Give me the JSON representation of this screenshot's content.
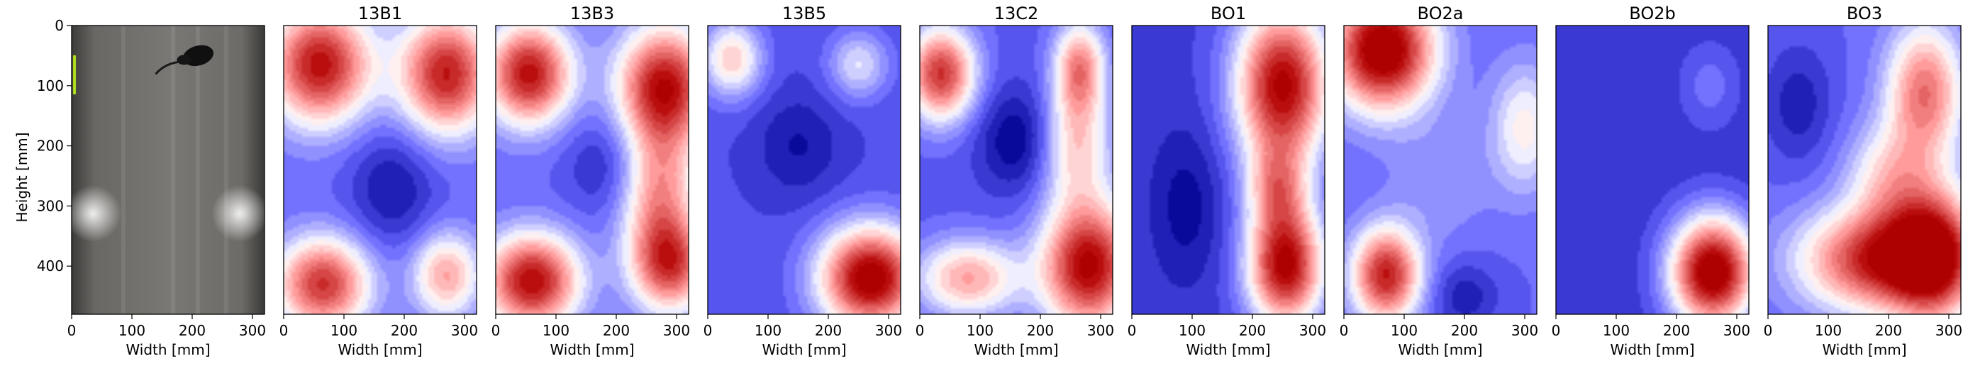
{
  "chart_data": {
    "type": "heatmap",
    "xlabel": "Width [mm]",
    "ylabel": "Height [mm]",
    "xlim": [
      0,
      320
    ],
    "ylim": [
      480,
      0
    ],
    "x_ticks": [
      "0",
      "100",
      "200",
      "300"
    ],
    "x_tick_values": [
      0,
      100,
      200,
      300
    ],
    "y_ticks": [
      "0",
      "100",
      "200",
      "300",
      "400"
    ],
    "y_tick_values": [
      0,
      100,
      200,
      300,
      400
    ],
    "colormap": "bwr",
    "colors": {
      "low": "#00008b",
      "mid": "#ffffff",
      "high": "#b40000"
    },
    "photo_panel": {
      "subject": "mouse in rectangular arena",
      "mouse_position": [
        210,
        50
      ]
    },
    "panels": [
      {
        "title": "13B1",
        "base": -0.55,
        "blobs": [
          {
            "x": 60,
            "y": 65,
            "amp": 1.5,
            "sx": 60,
            "sy": 70
          },
          {
            "x": 270,
            "y": 80,
            "amp": 1.45,
            "sx": 55,
            "sy": 70
          },
          {
            "x": 65,
            "y": 430,
            "amp": 1.35,
            "sx": 55,
            "sy": 55
          },
          {
            "x": 270,
            "y": 415,
            "amp": 0.9,
            "sx": 40,
            "sy": 50
          },
          {
            "x": 180,
            "y": 270,
            "amp": -0.35,
            "sx": 50,
            "sy": 70
          }
        ]
      },
      {
        "title": "13B3",
        "base": -0.55,
        "blobs": [
          {
            "x": 55,
            "y": 80,
            "amp": 1.5,
            "sx": 50,
            "sy": 60
          },
          {
            "x": 280,
            "y": 100,
            "amp": 1.5,
            "sx": 55,
            "sy": 70
          },
          {
            "x": 270,
            "y": 280,
            "amp": 0.95,
            "sx": 45,
            "sy": 85
          },
          {
            "x": 290,
            "y": 400,
            "amp": 1.15,
            "sx": 45,
            "sy": 55
          },
          {
            "x": 60,
            "y": 425,
            "amp": 1.55,
            "sx": 55,
            "sy": 55
          },
          {
            "x": 190,
            "y": 230,
            "amp": -0.3,
            "sx": 50,
            "sy": 60
          }
        ]
      },
      {
        "title": "13B5",
        "base": -0.65,
        "blobs": [
          {
            "x": 270,
            "y": 420,
            "amp": 1.8,
            "sx": 60,
            "sy": 60
          },
          {
            "x": 40,
            "y": 55,
            "amp": 0.85,
            "sx": 35,
            "sy": 45
          },
          {
            "x": 250,
            "y": 65,
            "amp": 0.55,
            "sx": 35,
            "sy": 40
          },
          {
            "x": 150,
            "y": 200,
            "amp": -0.25,
            "sx": 50,
            "sy": 60
          }
        ]
      },
      {
        "title": "13C2",
        "base": -0.6,
        "blobs": [
          {
            "x": 35,
            "y": 80,
            "amp": 1.4,
            "sx": 40,
            "sy": 55
          },
          {
            "x": 265,
            "y": 70,
            "amp": 1.05,
            "sx": 30,
            "sy": 55
          },
          {
            "x": 260,
            "y": 200,
            "amp": 0.75,
            "sx": 40,
            "sy": 70
          },
          {
            "x": 280,
            "y": 400,
            "amp": 1.65,
            "sx": 55,
            "sy": 75
          },
          {
            "x": 80,
            "y": 420,
            "amp": 0.95,
            "sx": 60,
            "sy": 45
          },
          {
            "x": 160,
            "y": 190,
            "amp": -0.4,
            "sx": 45,
            "sy": 60
          }
        ]
      },
      {
        "title": "BO1",
        "base": -0.7,
        "blobs": [
          {
            "x": 250,
            "y": 100,
            "amp": 1.75,
            "sx": 55,
            "sy": 95
          },
          {
            "x": 255,
            "y": 400,
            "amp": 1.75,
            "sx": 45,
            "sy": 70
          },
          {
            "x": 240,
            "y": 270,
            "amp": 0.75,
            "sx": 35,
            "sy": 50
          },
          {
            "x": 90,
            "y": 300,
            "amp": -0.25,
            "sx": 40,
            "sy": 90
          }
        ]
      },
      {
        "title": "BO2a",
        "base": -0.55,
        "blobs": [
          {
            "x": 65,
            "y": 40,
            "amp": 1.8,
            "sx": 60,
            "sy": 70
          },
          {
            "x": 70,
            "y": 415,
            "amp": 1.45,
            "sx": 40,
            "sy": 55
          },
          {
            "x": 300,
            "y": 170,
            "amp": 0.6,
            "sx": 40,
            "sy": 75
          },
          {
            "x": 160,
            "y": 260,
            "amp": 0.2,
            "sx": 60,
            "sy": 70
          },
          {
            "x": 200,
            "y": 450,
            "amp": -0.3,
            "sx": 40,
            "sy": 40
          }
        ]
      },
      {
        "title": "BO2b",
        "base": -0.75,
        "blobs": [
          {
            "x": 260,
            "y": 410,
            "amp": 1.95,
            "sx": 50,
            "sy": 65
          },
          {
            "x": 255,
            "y": 100,
            "amp": 0.25,
            "sx": 35,
            "sy": 50
          }
        ]
      },
      {
        "title": "BO3",
        "base": -0.55,
        "blobs": [
          {
            "x": 185,
            "y": 390,
            "amp": 1.45,
            "sx": 90,
            "sy": 60
          },
          {
            "x": 275,
            "y": 380,
            "amp": 1.3,
            "sx": 50,
            "sy": 80
          },
          {
            "x": 260,
            "y": 110,
            "amp": 1.1,
            "sx": 45,
            "sy": 80
          },
          {
            "x": 200,
            "y": 250,
            "amp": 0.6,
            "sx": 50,
            "sy": 60
          },
          {
            "x": 50,
            "y": 130,
            "amp": -0.3,
            "sx": 40,
            "sy": 70
          }
        ]
      }
    ]
  }
}
